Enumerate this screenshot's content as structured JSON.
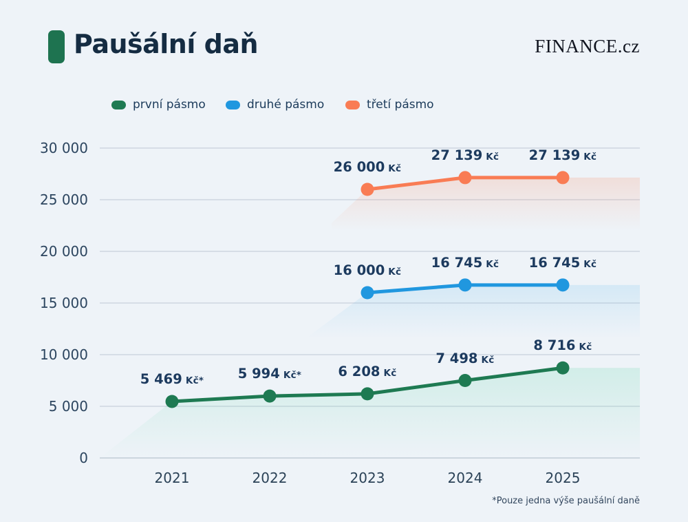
{
  "header": {
    "title": "Paušální daň",
    "brand": "FINANCE.cz",
    "accent_color": "#1e7350"
  },
  "legend": [
    {
      "label": "první pásmo",
      "color": "#1e7a52"
    },
    {
      "label": "druhé pásmo",
      "color": "#2097df"
    },
    {
      "label": "třetí pásmo",
      "color": "#f97c54"
    }
  ],
  "footnote": "*Pouze jedna výše paušální daně",
  "chart_data": {
    "type": "line",
    "title": "Paušální daň",
    "unit": "Kč",
    "categories": [
      "2021",
      "2022",
      "2023",
      "2024",
      "2025"
    ],
    "series": [
      {
        "name": "první pásmo",
        "color": "#1e7a52",
        "tint": "#3ecf96",
        "values": [
          5469,
          5994,
          6208,
          7498,
          8716
        ],
        "point_labels": [
          "5 469 Kč*",
          "5 994 Kč*",
          "6 208 Kč",
          "7 498 Kč",
          "8 716 Kč"
        ]
      },
      {
        "name": "druhé pásmo",
        "color": "#2097df",
        "tint": "#45aee8",
        "values": [
          null,
          null,
          16000,
          16745,
          16745
        ],
        "point_labels": [
          null,
          null,
          "16 000 Kč",
          "16 745 Kč",
          "16 745 Kč"
        ]
      },
      {
        "name": "třetí pásmo",
        "color": "#f97c54",
        "tint": "#fa8a62",
        "values": [
          null,
          null,
          26000,
          27139,
          27139
        ],
        "point_labels": [
          null,
          null,
          "26 000 Kč",
          "27 139 Kč",
          "27 139 Kč"
        ]
      }
    ],
    "yticks": [
      {
        "value": 0,
        "label": "0"
      },
      {
        "value": 5000,
        "label": "5 000"
      },
      {
        "value": 10000,
        "label": "10 000"
      },
      {
        "value": 15000,
        "label": "15 000"
      },
      {
        "value": 20000,
        "label": "20 000"
      },
      {
        "value": 25000,
        "label": "25 000"
      },
      {
        "value": 30000,
        "label": "30 000"
      }
    ],
    "ylim": [
      0,
      30000
    ],
    "grid": true,
    "legend_position": "top"
  }
}
